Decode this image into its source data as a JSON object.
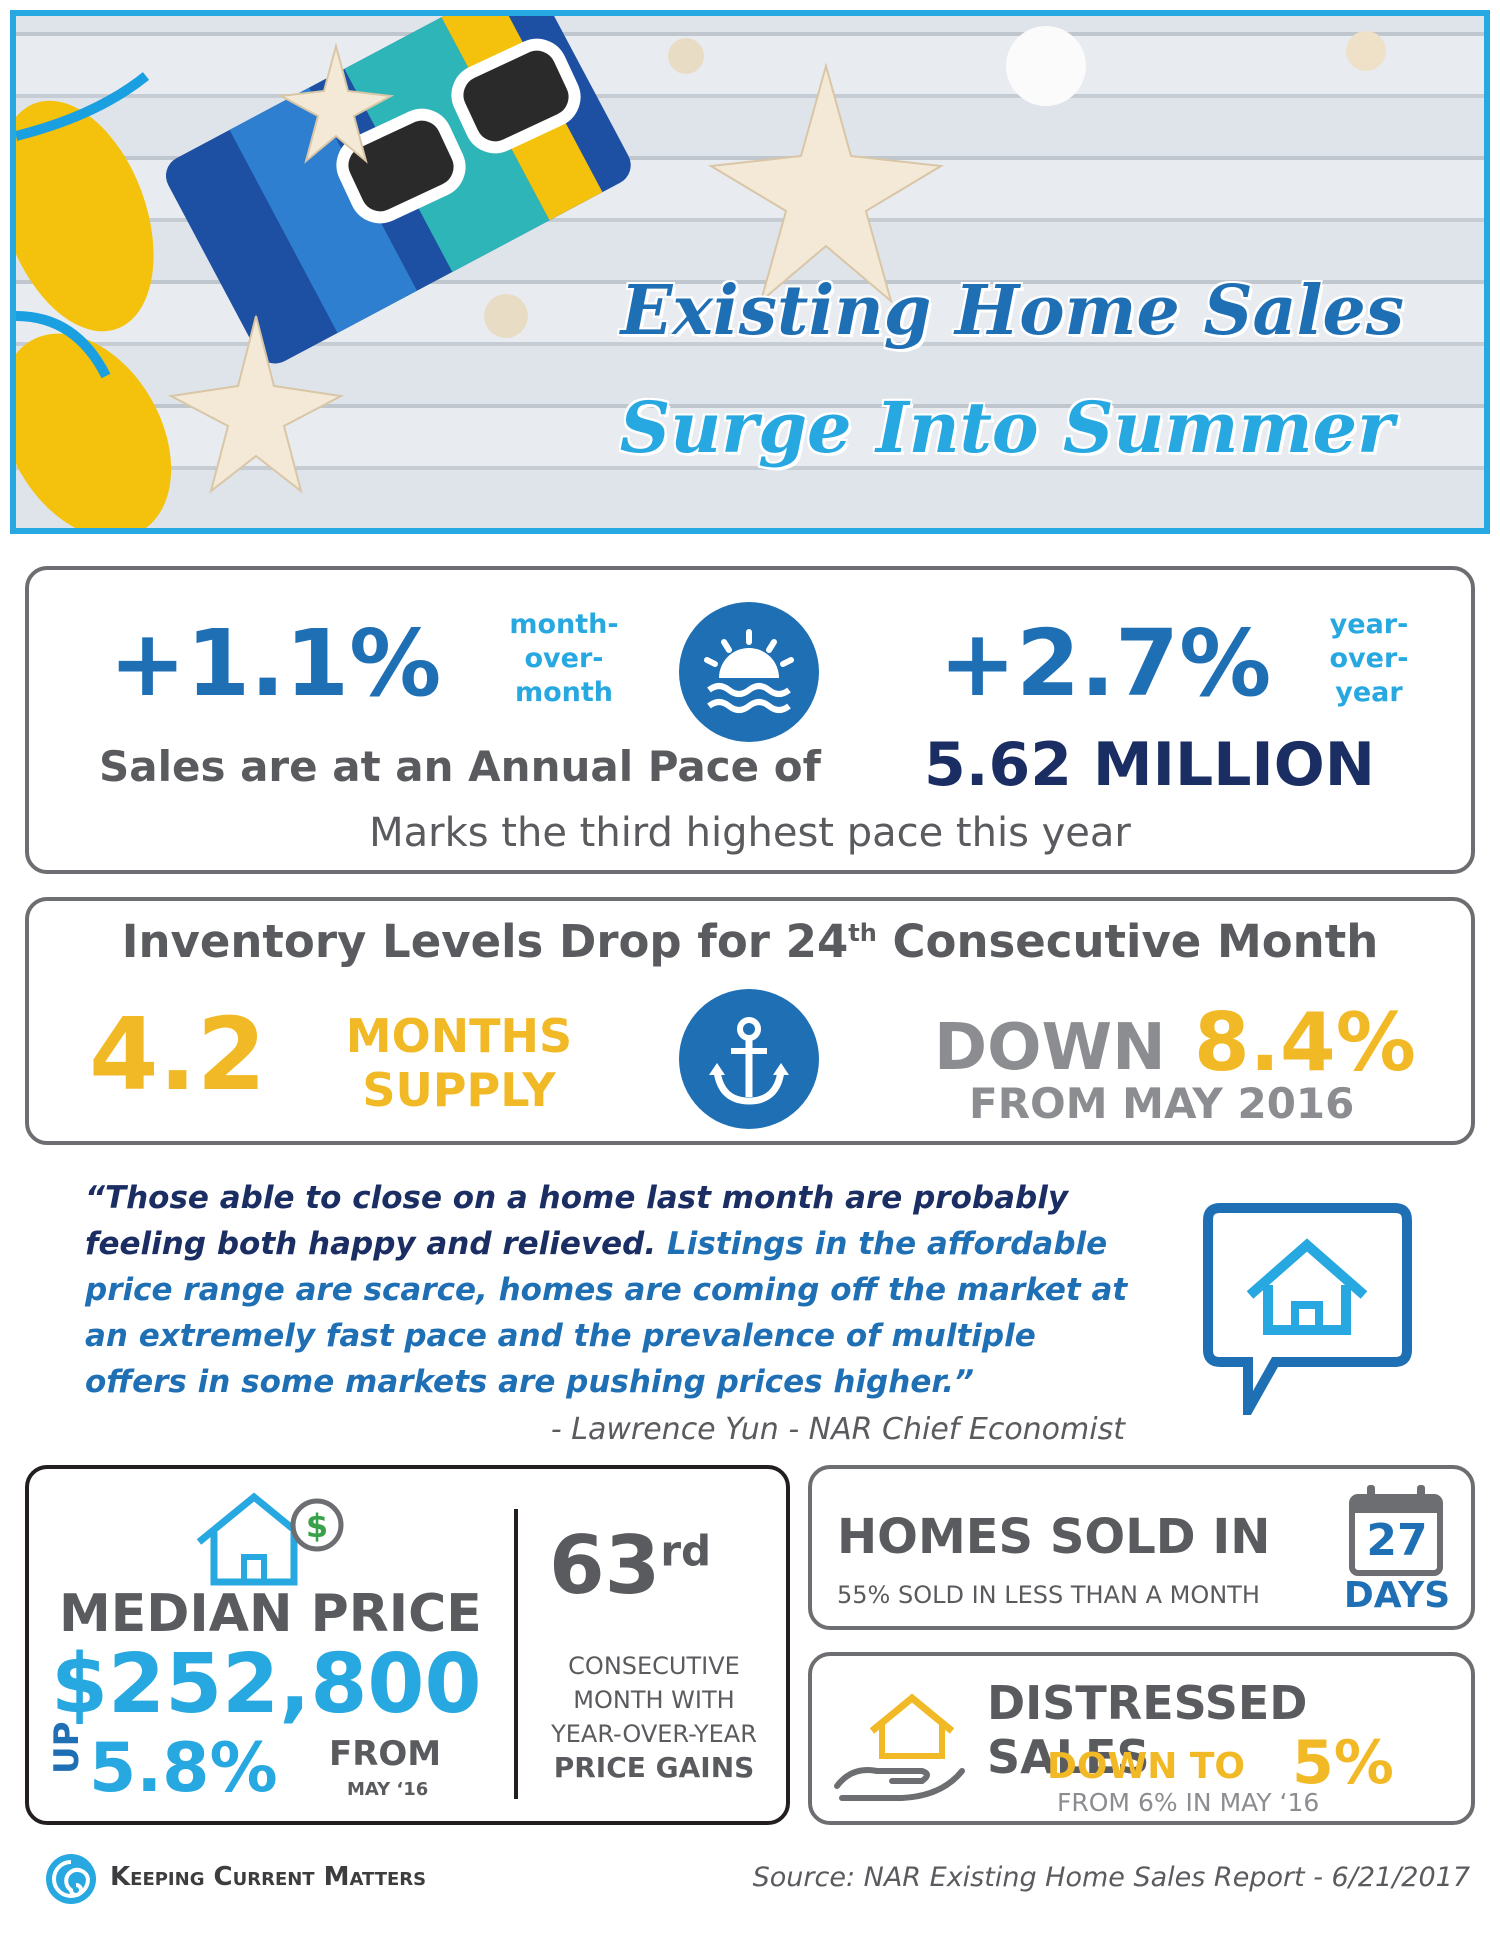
{
  "hero": {
    "title_line1": "Existing Home Sales",
    "title_line2": "Surge Into Summer"
  },
  "sales": {
    "mom_value": "+1.1%",
    "mom_label": [
      "month-",
      "over-",
      "month"
    ],
    "yoy_value": "+2.7%",
    "yoy_label": [
      "year-",
      "over-",
      "year"
    ],
    "pace_text": "Sales are at an Annual Pace of",
    "pace_value": "5.62 MILLION",
    "subtext": "Marks the third highest pace this year"
  },
  "inventory": {
    "title_pre": "Inventory Levels Drop for 24",
    "title_sup": "th",
    "title_post": " Consecutive Month",
    "supply_value": "4.2",
    "supply_label": [
      "MONTHS",
      "SUPPLY"
    ],
    "down_word": "DOWN",
    "down_value": "8.4%",
    "down_from": "FROM MAY 2016"
  },
  "quote": {
    "dark_part": "“Those able to close on a home last month are probably feeling both happy and relieved.",
    "blue_part": "Listings in the affordable price range are scarce, homes are coming off the market at an extremely fast pace and the prevalence of multiple offers in some markets are pushing prices higher.”",
    "attribution": "- Lawrence Yun - NAR Chief Economist"
  },
  "median": {
    "label": "MEDIAN PRICE",
    "value": "$252,800",
    "up_word": "UP",
    "up_value": "5.8%",
    "from_word": "FROM",
    "from_date": "MAY ‘16",
    "consecutive_num": "63",
    "consecutive_sup": "rd",
    "consecutive_lines": [
      "CONSECUTIVE",
      "MONTH WITH",
      "YEAR-OVER-YEAR"
    ],
    "consecutive_last": "PRICE GAINS"
  },
  "sold": {
    "label": "HOMES SOLD IN",
    "sub": "55% SOLD IN LESS THAN A MONTH",
    "days_num": "27",
    "days_word": "DAYS"
  },
  "distressed": {
    "label": "DISTRESSED SALES",
    "down_to": "DOWN TO",
    "value": "5%",
    "from": "FROM 6% IN MAY ‘16"
  },
  "footer": {
    "brand": "Keeping Current Matters",
    "source": "Source: NAR Existing Home Sales Report - 6/21/2017"
  },
  "colors": {
    "blue": "#1f6fb5",
    "light_blue": "#27a8e0",
    "navy": "#1b2e63",
    "gold": "#f2b927",
    "gray": "#5a5b5e",
    "green": "#3aa14b"
  },
  "icons": [
    "sunset-icon",
    "anchor-icon",
    "house-speech-bubble-icon",
    "house-dollar-icon",
    "calendar-icon",
    "hand-house-icon",
    "kcm-logo-icon"
  ]
}
